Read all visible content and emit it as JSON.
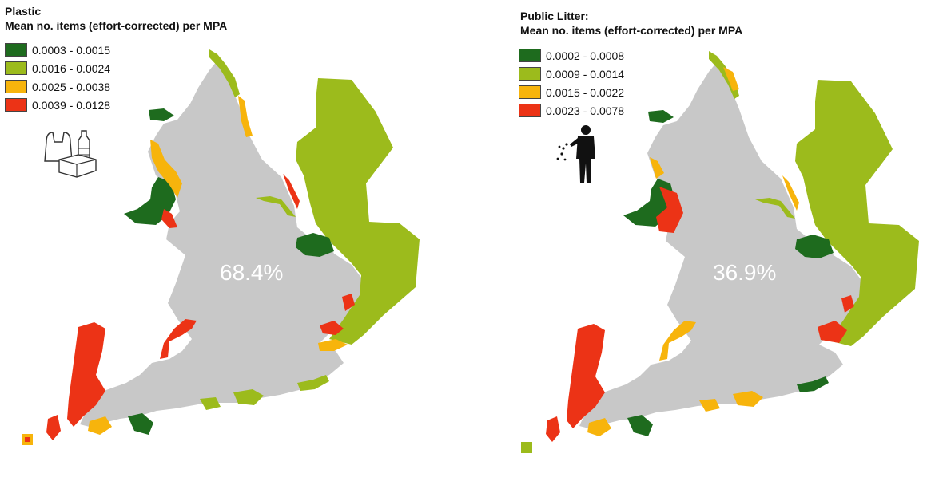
{
  "colors": {
    "land": "#c8c8c8",
    "dark_green": "#1e6b1e",
    "light_green": "#9cbb1c",
    "yellow": "#f7b40c",
    "red": "#ec3316"
  },
  "panels": [
    {
      "id": "plastic",
      "title": "Plastic",
      "subtitle": "Mean no. items (effort-corrected) per MPA",
      "legend": [
        {
          "label": "0.0003 - 0.0015",
          "color": "#1e6b1e"
        },
        {
          "label": "0.0016 - 0.0024",
          "color": "#9cbb1c"
        },
        {
          "label": "0.0025 - 0.0038",
          "color": "#f7b40c"
        },
        {
          "label": "0.0039 - 0.0128",
          "color": "#ec3316"
        }
      ],
      "percentage": "68.4%",
      "icon": "plastic-items-icon"
    },
    {
      "id": "public-litter",
      "title": "Public Litter:",
      "subtitle": "Mean no. items (effort-corrected) per MPA",
      "legend": [
        {
          "label": "0.0002 - 0.0008",
          "color": "#1e6b1e"
        },
        {
          "label": "0.0009 - 0.0014",
          "color": "#9cbb1c"
        },
        {
          "label": "0.0015 - 0.0022",
          "color": "#f7b40c"
        },
        {
          "label": "0.0023 - 0.0078",
          "color": "#ec3316"
        }
      ],
      "percentage": "36.9%",
      "icon": "person-littering-icon"
    }
  ]
}
